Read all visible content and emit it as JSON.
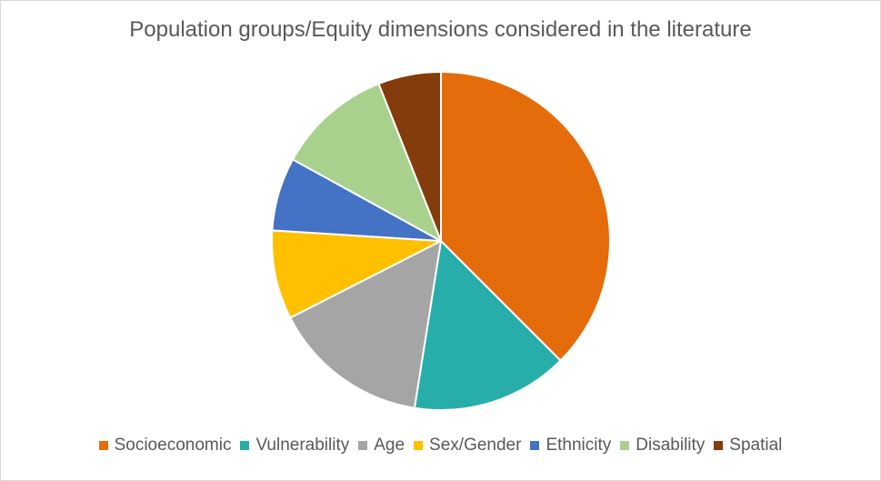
{
  "chart_data": {
    "type": "pie",
    "title": "Population groups/Equity dimensions considered in the literature",
    "categories": [
      "Socioeconomic",
      "Vulnerability",
      "Age",
      "Sex/Gender",
      "Ethnicity",
      "Disability",
      "Spatial"
    ],
    "values": [
      37.5,
      15,
      15,
      8.5,
      7,
      11,
      6
    ],
    "colors": [
      "#E46C0A",
      "#27AEAA",
      "#A5A5A5",
      "#FFC000",
      "#4472C4",
      "#A9D18E",
      "#843C0C"
    ],
    "legend": "bottom"
  }
}
